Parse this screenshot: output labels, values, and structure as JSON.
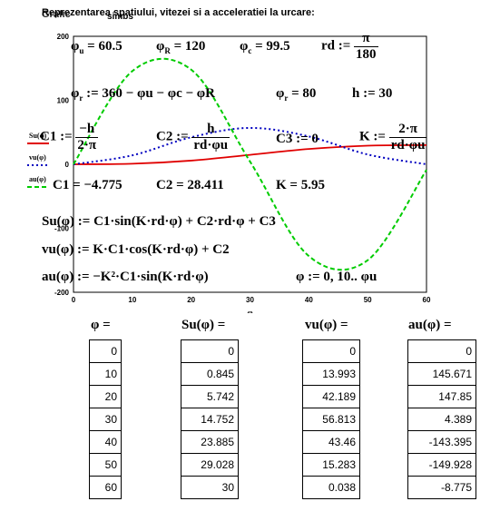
{
  "header": {
    "title": "Reprezentarea spatiului, vitezei si a acceleratiei la urcare:",
    "overlap_left": "Grafic",
    "overlap_right": "simbs"
  },
  "equations": {
    "phi_u": "= 60.5",
    "phi_R": "= 120",
    "phi_c": "= 99.5",
    "rd_lhs": "rd :=",
    "rd_num": "π",
    "rd_den": "180",
    "phi_r_def": ":= 360 − φu − φc − φR",
    "phi_r_val": "= 80",
    "h_val": "h := 30",
    "C1_def_lhs": "C1 :=",
    "C1_num": "−h",
    "C1_den": "2·π",
    "C2_def_lhs": "C2 :=",
    "C2_num": "h",
    "C2_den": "rd·φu",
    "C3_def": "C3 := 0",
    "K_def_lhs": "K :=",
    "K_num": "2·π",
    "K_den": "rd·φu",
    "C1_val": "C1 = −4.775",
    "C2_val": "C2 = 28.411",
    "K_val": "K = 5.95",
    "Su_def": "Su(φ) := C1·sin(K·rd·φ) + C2·rd·φ + C3",
    "vu_def": "vu(φ) := K·C1·cos(K·rd·φ) + C2",
    "au_def": "au(φ) := −K²·C1·sin(K·rd·φ)",
    "phi_range": "φ := 0, 10.. φu"
  },
  "chart_data": {
    "type": "line",
    "xlabel": "φ",
    "xlim": [
      0,
      60
    ],
    "ylim": [
      -200,
      200
    ],
    "x_ticks": [
      0,
      10,
      20,
      30,
      40,
      50,
      60
    ],
    "y_tick_labels": [
      "200",
      "100",
      "0",
      "-100",
      "-200"
    ],
    "legend_labels": [
      "Su(φ)",
      "vu(φ)",
      "au(φ)"
    ],
    "series": [
      {
        "name": "Su(φ)",
        "color": "#e00000",
        "dash": "solid",
        "x": [
          0,
          10,
          20,
          30,
          40,
          50,
          60
        ],
        "y": [
          0,
          0.845,
          5.742,
          14.752,
          23.885,
          29.028,
          30
        ]
      },
      {
        "name": "vu(φ)",
        "color": "#0000c0",
        "dash": "dotted",
        "x": [
          0,
          10,
          20,
          30,
          40,
          50,
          60
        ],
        "y": [
          0,
          13.993,
          42.189,
          56.813,
          43.46,
          15.283,
          0.038
        ]
      },
      {
        "name": "au(φ)",
        "color": "#00cc00",
        "dash": "dashed",
        "x": [
          0,
          10,
          20,
          30,
          40,
          50,
          60
        ],
        "y": [
          0,
          145.671,
          147.85,
          4.389,
          -143.395,
          -149.928,
          -8.775
        ]
      }
    ]
  },
  "table": {
    "headers": [
      "φ =",
      "Su(φ) =",
      "vu(φ) =",
      "au(φ) ="
    ],
    "phi": [
      "0",
      "10",
      "20",
      "30",
      "40",
      "50",
      "60"
    ],
    "Su": [
      "0",
      "0.845",
      "5.742",
      "14.752",
      "23.885",
      "29.028",
      "30"
    ],
    "vu": [
      "0",
      "13.993",
      "42.189",
      "56.813",
      "43.46",
      "15.283",
      "0.038"
    ],
    "au": [
      "0",
      "145.671",
      "147.85",
      "4.389",
      "-143.395",
      "-149.928",
      "-8.775"
    ]
  }
}
